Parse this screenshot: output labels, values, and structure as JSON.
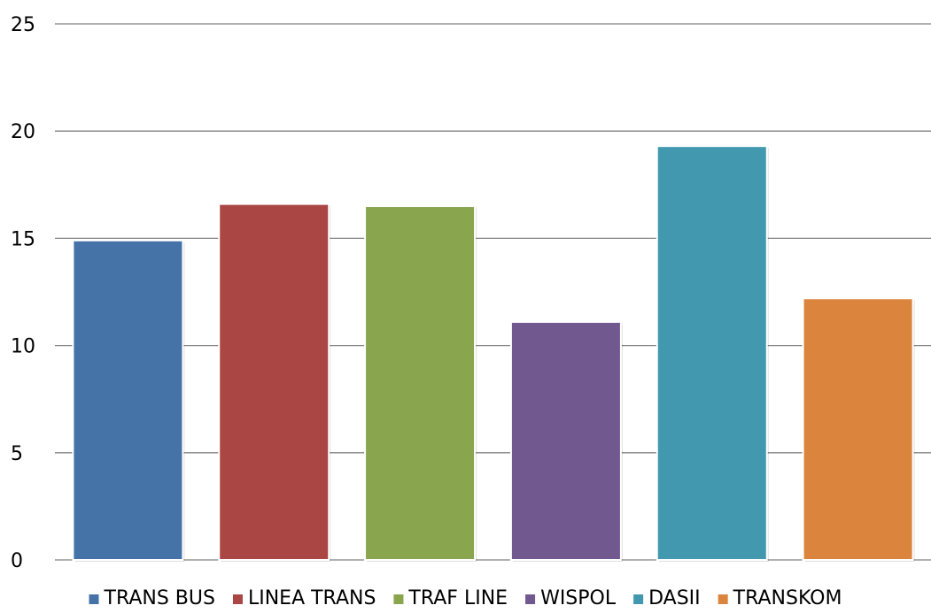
{
  "chart_data": {
    "type": "bar",
    "title": "",
    "xlabel": "",
    "ylabel": "",
    "ylim": [
      0,
      25
    ],
    "yticks": [
      0,
      5,
      10,
      15,
      20,
      25
    ],
    "grid": true,
    "legend_position": "bottom",
    "series": [
      {
        "name": "TRANS BUS",
        "value": 14.9,
        "color": "#4572A7"
      },
      {
        "name": "LINEA TRANS",
        "value": 16.6,
        "color": "#AA4643"
      },
      {
        "name": "TRAF LINE",
        "value": 16.5,
        "color": "#89A54E"
      },
      {
        "name": "WISPOL",
        "value": 11.1,
        "color": "#71588F"
      },
      {
        "name": "DASII",
        "value": 19.3,
        "color": "#4198AF"
      },
      {
        "name": "TRANSKOM",
        "value": 12.2,
        "color": "#DB843D"
      }
    ]
  }
}
